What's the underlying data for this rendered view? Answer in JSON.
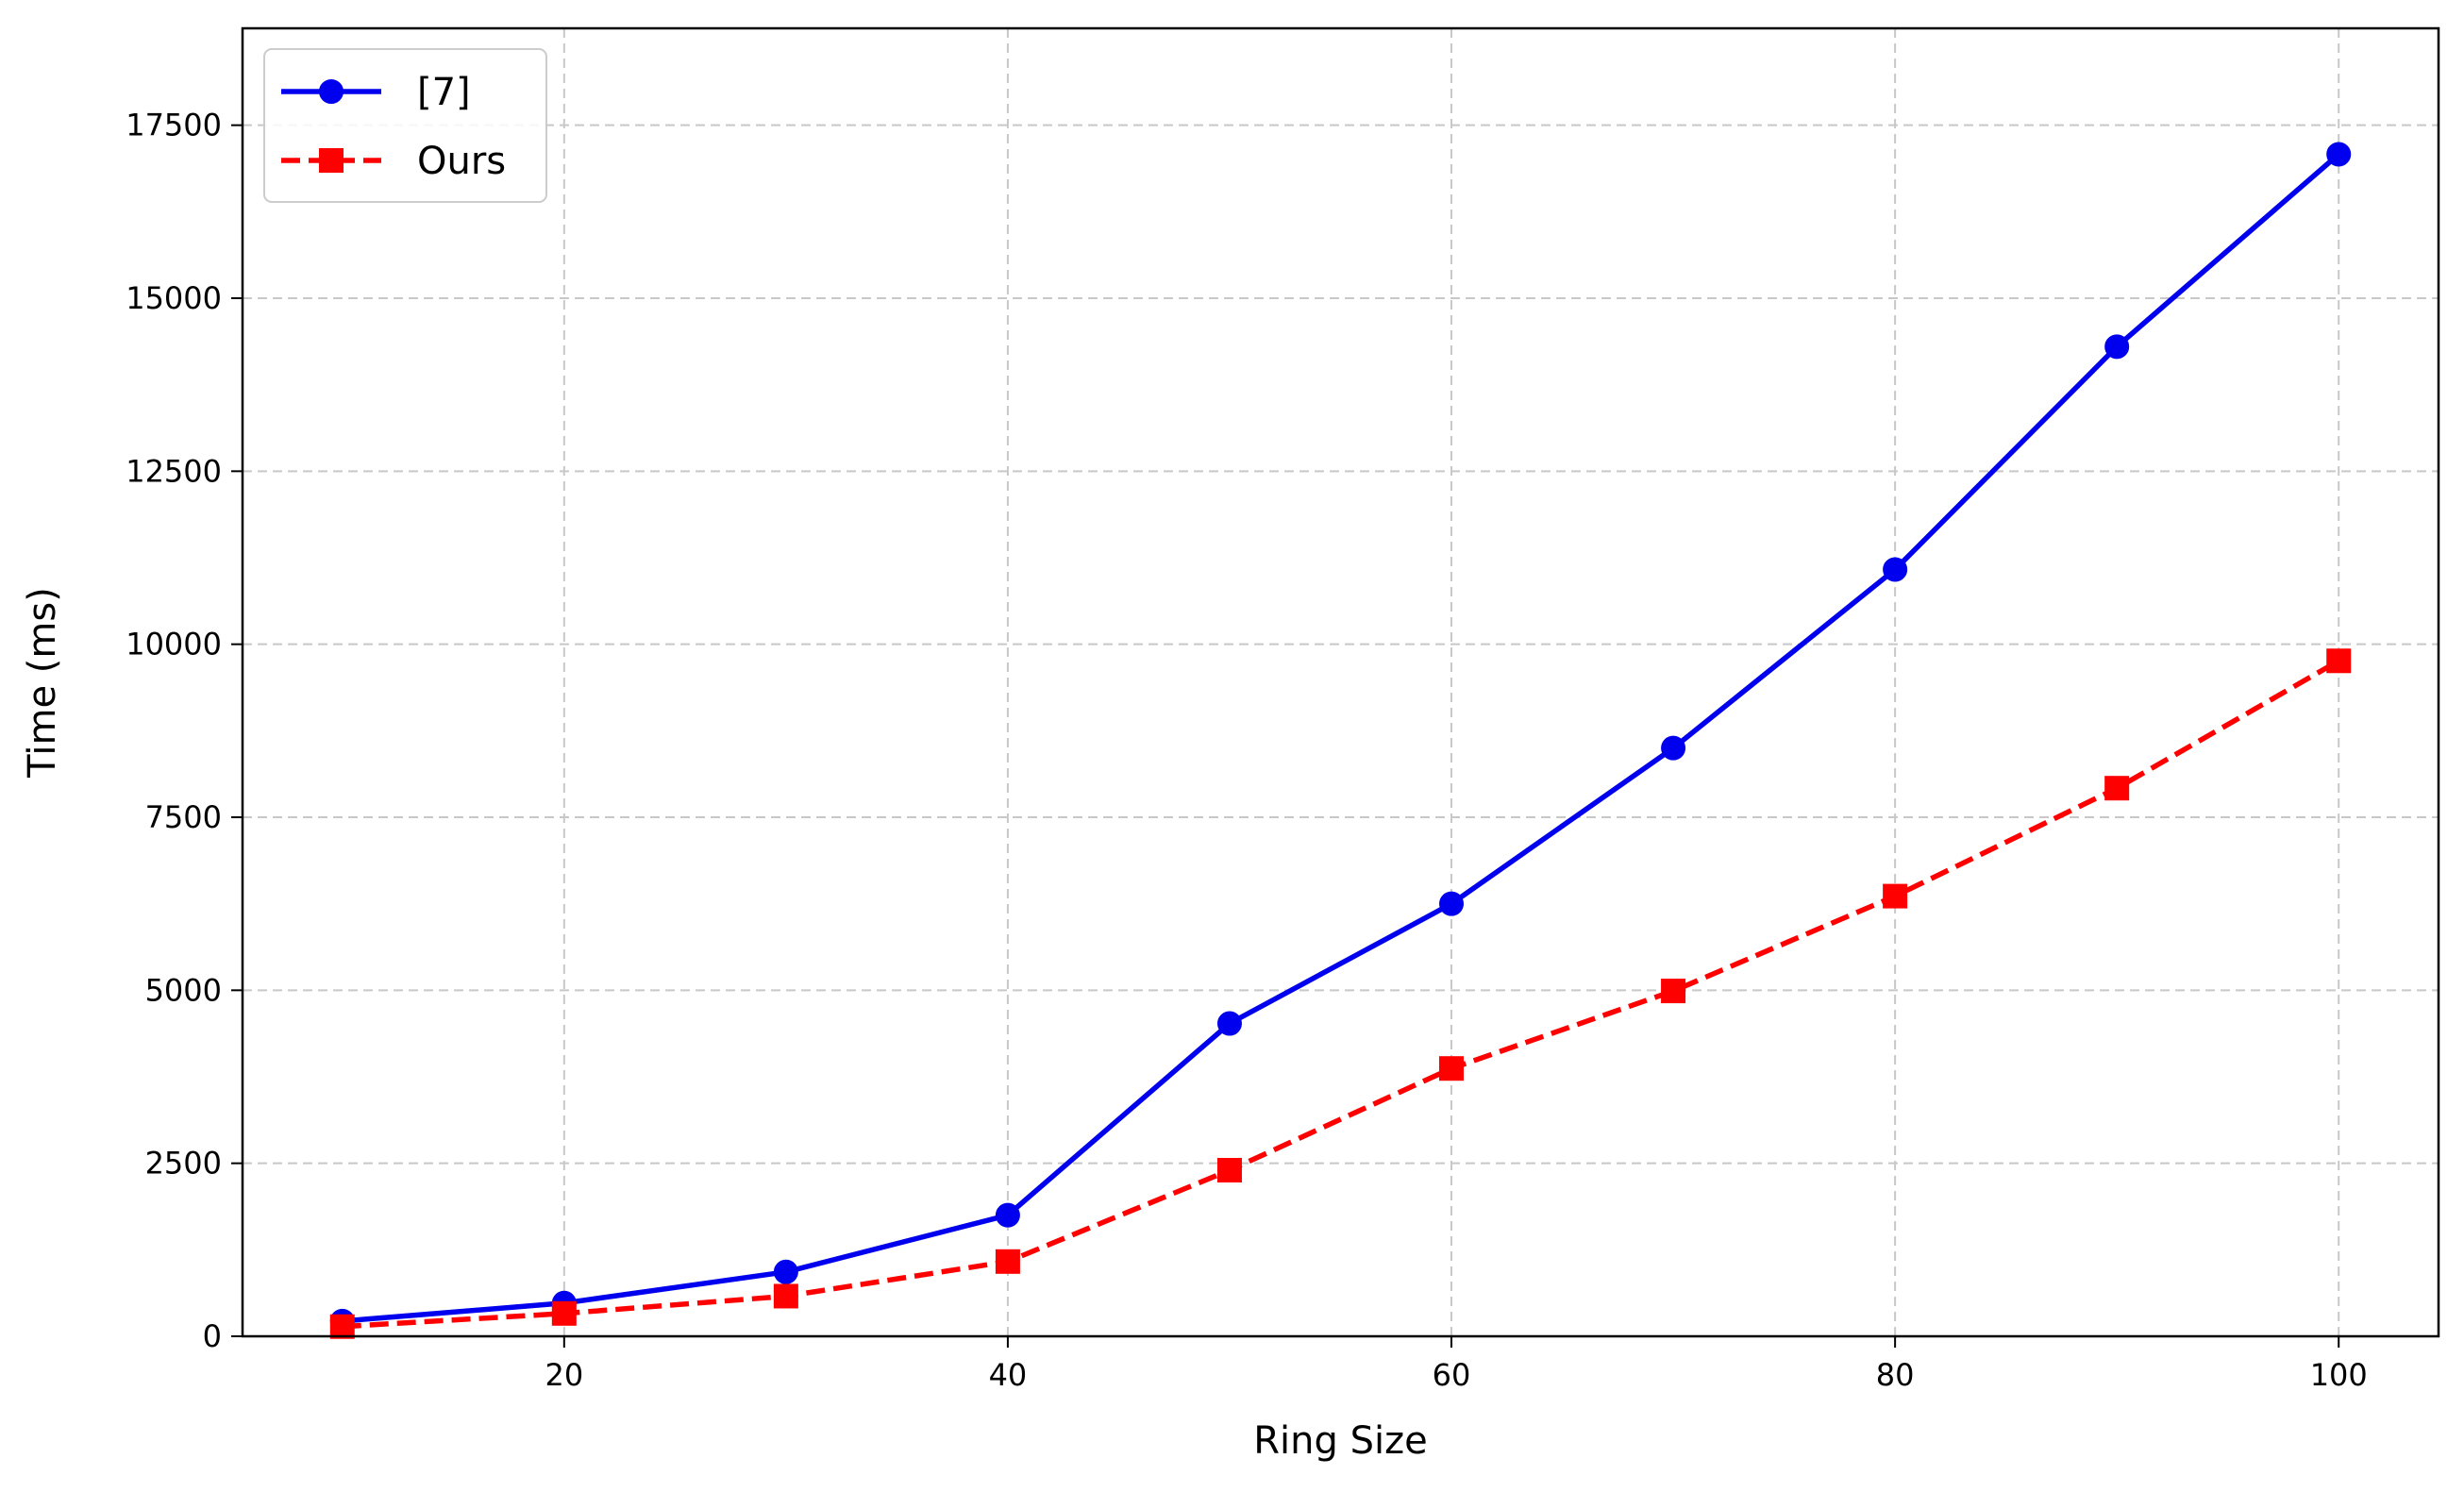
{
  "chart_data": {
    "type": "line",
    "xlabel": "Ring Size",
    "ylabel": "Time (ms)",
    "xlim": [
      5.5,
      104.5
    ],
    "ylim": [
      0,
      18900
    ],
    "x_ticks": [
      20,
      40,
      60,
      80,
      100
    ],
    "y_ticks": [
      0,
      2500,
      5000,
      7500,
      10000,
      12500,
      15000,
      17500
    ],
    "grid": true,
    "legend_position": "top-left",
    "series": [
      {
        "name": "[7]",
        "color": "#0000ee",
        "line_style": "solid",
        "marker": "circle",
        "x": [
          10,
          20,
          30,
          40,
          50,
          60,
          70,
          80,
          90,
          100
        ],
        "y": [
          220,
          480,
          930,
          1750,
          4520,
          6250,
          8500,
          11080,
          14300,
          17080
        ]
      },
      {
        "name": "Ours",
        "color": "#ff0000",
        "line_style": "dashed",
        "marker": "square",
        "x": [
          10,
          20,
          30,
          40,
          50,
          60,
          70,
          80,
          90,
          100
        ],
        "y": [
          140,
          330,
          580,
          1080,
          2400,
          3870,
          4990,
          6360,
          7920,
          9760
        ]
      }
    ]
  }
}
